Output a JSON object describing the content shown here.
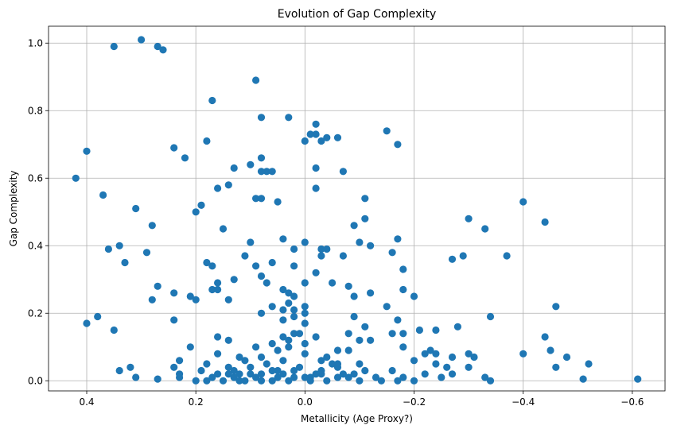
{
  "chart_data": {
    "type": "scatter",
    "title": "Evolution of Gap Complexity",
    "xlabel": "Metallicity (Age Proxy?)",
    "ylabel": "Gap Complexity",
    "xlim": [
      0.47,
      -0.66
    ],
    "ylim": [
      -0.03,
      1.05
    ],
    "x_axis_inverted": true,
    "xticks": [
      0.4,
      0.2,
      0.0,
      -0.2,
      -0.4,
      -0.6
    ],
    "xtick_labels": [
      "0.4",
      "0.2",
      "0.0",
      "−0.2",
      "−0.4",
      "−0.6"
    ],
    "yticks": [
      0.0,
      0.2,
      0.4,
      0.6,
      0.8,
      1.0
    ],
    "ytick_labels": [
      "0.0",
      "0.2",
      "0.4",
      "0.6",
      "0.8",
      "1.0"
    ],
    "grid": true,
    "marker_color": "#1f77b4",
    "points": [
      [
        0.3,
        1.01
      ],
      [
        0.35,
        0.99
      ],
      [
        0.27,
        0.99
      ],
      [
        0.26,
        0.98
      ],
      [
        0.09,
        0.89
      ],
      [
        0.17,
        0.83
      ],
      [
        0.08,
        0.78
      ],
      [
        0.03,
        0.78
      ],
      [
        -0.02,
        0.76
      ],
      [
        -0.15,
        0.74
      ],
      [
        -0.02,
        0.73
      ],
      [
        -0.01,
        0.73
      ],
      [
        -0.04,
        0.72
      ],
      [
        -0.06,
        0.72
      ],
      [
        0.0,
        0.71
      ],
      [
        -0.03,
        0.71
      ],
      [
        0.18,
        0.71
      ],
      [
        -0.17,
        0.7
      ],
      [
        0.4,
        0.68
      ],
      [
        0.24,
        0.69
      ],
      [
        0.08,
        0.66
      ],
      [
        0.22,
        0.66
      ],
      [
        -0.02,
        0.63
      ],
      [
        0.13,
        0.63
      ],
      [
        0.1,
        0.64
      ],
      [
        0.07,
        0.62
      ],
      [
        0.06,
        0.62
      ],
      [
        0.08,
        0.62
      ],
      [
        -0.07,
        0.62
      ],
      [
        0.42,
        0.6
      ],
      [
        0.14,
        0.58
      ],
      [
        -0.02,
        0.57
      ],
      [
        0.16,
        0.57
      ],
      [
        0.37,
        0.55
      ],
      [
        0.09,
        0.54
      ],
      [
        0.08,
        0.54
      ],
      [
        0.05,
        0.53
      ],
      [
        -0.11,
        0.54
      ],
      [
        -0.4,
        0.53
      ],
      [
        0.19,
        0.52
      ],
      [
        0.31,
        0.51
      ],
      [
        0.2,
        0.5
      ],
      [
        -0.3,
        0.48
      ],
      [
        -0.11,
        0.48
      ],
      [
        -0.44,
        0.47
      ],
      [
        -0.09,
        0.46
      ],
      [
        0.28,
        0.46
      ],
      [
        -0.33,
        0.45
      ],
      [
        0.15,
        0.45
      ],
      [
        -0.17,
        0.42
      ],
      [
        0.04,
        0.42
      ],
      [
        0.1,
        0.41
      ],
      [
        0.0,
        0.41
      ],
      [
        -0.1,
        0.41
      ],
      [
        0.34,
        0.4
      ],
      [
        -0.12,
        0.4
      ],
      [
        0.36,
        0.39
      ],
      [
        -0.04,
        0.39
      ],
      [
        0.02,
        0.39
      ],
      [
        -0.03,
        0.39
      ],
      [
        0.29,
        0.38
      ],
      [
        -0.16,
        0.38
      ],
      [
        0.11,
        0.37
      ],
      [
        -0.29,
        0.37
      ],
      [
        -0.07,
        0.37
      ],
      [
        -0.37,
        0.37
      ],
      [
        -0.27,
        0.36
      ],
      [
        0.33,
        0.35
      ],
      [
        0.06,
        0.35
      ],
      [
        0.18,
        0.35
      ],
      [
        0.17,
        0.34
      ],
      [
        -0.03,
        0.37
      ],
      [
        -0.18,
        0.33
      ],
      [
        0.09,
        0.34
      ],
      [
        0.02,
        0.34
      ],
      [
        -0.02,
        0.32
      ],
      [
        0.08,
        0.31
      ],
      [
        0.13,
        0.3
      ],
      [
        0.16,
        0.29
      ],
      [
        0.07,
        0.29
      ],
      [
        -0.05,
        0.29
      ],
      [
        0.0,
        0.29
      ],
      [
        0.27,
        0.28
      ],
      [
        -0.08,
        0.28
      ],
      [
        -0.18,
        0.27
      ],
      [
        0.17,
        0.27
      ],
      [
        0.04,
        0.27
      ],
      [
        0.24,
        0.26
      ],
      [
        0.16,
        0.27
      ],
      [
        -0.12,
        0.26
      ],
      [
        0.03,
        0.26
      ],
      [
        0.02,
        0.25
      ],
      [
        -0.09,
        0.25
      ],
      [
        0.2,
        0.24
      ],
      [
        0.21,
        0.25
      ],
      [
        0.14,
        0.24
      ],
      [
        0.28,
        0.24
      ],
      [
        -0.2,
        0.25
      ],
      [
        0.03,
        0.23
      ],
      [
        0.06,
        0.22
      ],
      [
        -0.15,
        0.22
      ],
      [
        0.0,
        0.22
      ],
      [
        -0.46,
        0.22
      ],
      [
        0.02,
        0.21
      ],
      [
        0.04,
        0.21
      ],
      [
        0.0,
        0.2
      ],
      [
        0.08,
        0.2
      ],
      [
        0.38,
        0.19
      ],
      [
        0.02,
        0.19
      ],
      [
        -0.34,
        0.19
      ],
      [
        -0.09,
        0.19
      ],
      [
        0.24,
        0.18
      ],
      [
        0.4,
        0.17
      ],
      [
        0.04,
        0.18
      ],
      [
        -0.17,
        0.18
      ],
      [
        0.0,
        0.17
      ],
      [
        -0.11,
        0.16
      ],
      [
        -0.28,
        0.16
      ],
      [
        0.35,
        0.15
      ],
      [
        -0.24,
        0.15
      ],
      [
        -0.21,
        0.15
      ],
      [
        -0.18,
        0.14
      ],
      [
        0.02,
        0.14
      ],
      [
        -0.08,
        0.14
      ],
      [
        0.01,
        0.14
      ],
      [
        -0.16,
        0.14
      ],
      [
        -0.44,
        0.13
      ],
      [
        0.16,
        0.13
      ],
      [
        0.04,
        0.13
      ],
      [
        -0.02,
        0.13
      ],
      [
        -0.1,
        0.12
      ],
      [
        0.14,
        0.12
      ],
      [
        0.03,
        0.12
      ],
      [
        -0.12,
        0.12
      ],
      [
        0.06,
        0.11
      ],
      [
        -0.0,
        0.11
      ],
      [
        0.09,
        0.1
      ],
      [
        -0.18,
        0.1
      ],
      [
        0.21,
        0.1
      ],
      [
        0.03,
        0.1
      ],
      [
        -0.23,
        0.09
      ],
      [
        -0.06,
        0.09
      ],
      [
        0.05,
        0.09
      ],
      [
        -0.08,
        0.09
      ],
      [
        -0.45,
        0.09
      ],
      [
        0.16,
        0.08
      ],
      [
        -0.4,
        0.08
      ],
      [
        0.0,
        0.08
      ],
      [
        -0.24,
        0.08
      ],
      [
        -0.3,
        0.08
      ],
      [
        -0.22,
        0.08
      ],
      [
        0.12,
        0.07
      ],
      [
        -0.48,
        0.07
      ],
      [
        -0.27,
        0.07
      ],
      [
        -0.31,
        0.07
      ],
      [
        -0.04,
        0.07
      ],
      [
        0.08,
        0.07
      ],
      [
        0.04,
        0.06
      ],
      [
        -0.2,
        0.06
      ],
      [
        0.23,
        0.06
      ],
      [
        -0.03,
        0.06
      ],
      [
        0.11,
        0.06
      ],
      [
        -0.05,
        0.05
      ],
      [
        0.07,
        0.05
      ],
      [
        -0.24,
        0.05
      ],
      [
        -0.06,
        0.05
      ],
      [
        0.18,
        0.05
      ],
      [
        -0.1,
        0.05
      ],
      [
        -0.52,
        0.05
      ],
      [
        0.14,
        0.04
      ],
      [
        0.01,
        0.04
      ],
      [
        -0.26,
        0.04
      ],
      [
        -0.46,
        0.04
      ],
      [
        -0.06,
        0.04
      ],
      [
        -0.3,
        0.04
      ],
      [
        0.24,
        0.04
      ],
      [
        0.1,
        0.04
      ],
      [
        0.02,
        0.03
      ],
      [
        0.06,
        0.03
      ],
      [
        -0.03,
        0.03
      ],
      [
        0.32,
        0.04
      ],
      [
        0.13,
        0.03
      ],
      [
        -0.11,
        0.03
      ],
      [
        0.19,
        0.03
      ],
      [
        0.05,
        0.03
      ],
      [
        -0.16,
        0.03
      ],
      [
        0.34,
        0.03
      ],
      [
        0.12,
        0.02
      ],
      [
        0.16,
        0.02
      ],
      [
        -0.03,
        0.02
      ],
      [
        0.04,
        0.02
      ],
      [
        -0.07,
        0.02
      ],
      [
        -0.22,
        0.02
      ],
      [
        0.23,
        0.02
      ],
      [
        0.1,
        0.02
      ],
      [
        -0.09,
        0.02
      ],
      [
        0.14,
        0.02
      ],
      [
        -0.27,
        0.02
      ],
      [
        0.08,
        0.02
      ],
      [
        -0.02,
        0.02
      ],
      [
        0.31,
        0.01
      ],
      [
        -0.13,
        0.01
      ],
      [
        0.17,
        0.01
      ],
      [
        0.02,
        0.01
      ],
      [
        -0.01,
        0.01
      ],
      [
        0.09,
        0.01
      ],
      [
        -0.18,
        0.01
      ],
      [
        0.23,
        0.01
      ],
      [
        0.05,
        0.01
      ],
      [
        -0.33,
        0.01
      ],
      [
        -0.25,
        0.01
      ],
      [
        0.13,
        0.01
      ],
      [
        -0.06,
        0.01
      ],
      [
        0.0,
        0.01
      ],
      [
        -0.08,
        0.01
      ],
      [
        -0.51,
        0.005
      ],
      [
        0.27,
        0.005
      ],
      [
        -0.61,
        0.005
      ],
      [
        -0.34,
        0.0
      ],
      [
        -0.17,
        0.0
      ],
      [
        -0.14,
        0.0
      ],
      [
        0.18,
        0.0
      ],
      [
        0.11,
        0.0
      ],
      [
        0.06,
        0.0
      ],
      [
        -0.04,
        0.0
      ],
      [
        0.15,
        0.0
      ],
      [
        -0.2,
        0.0
      ],
      [
        0.03,
        0.0
      ],
      [
        -0.1,
        0.0
      ],
      [
        0.08,
        0.0
      ],
      [
        0.2,
        0.0
      ],
      [
        -0.01,
        0.0
      ],
      [
        0.12,
        0.0
      ]
    ]
  }
}
